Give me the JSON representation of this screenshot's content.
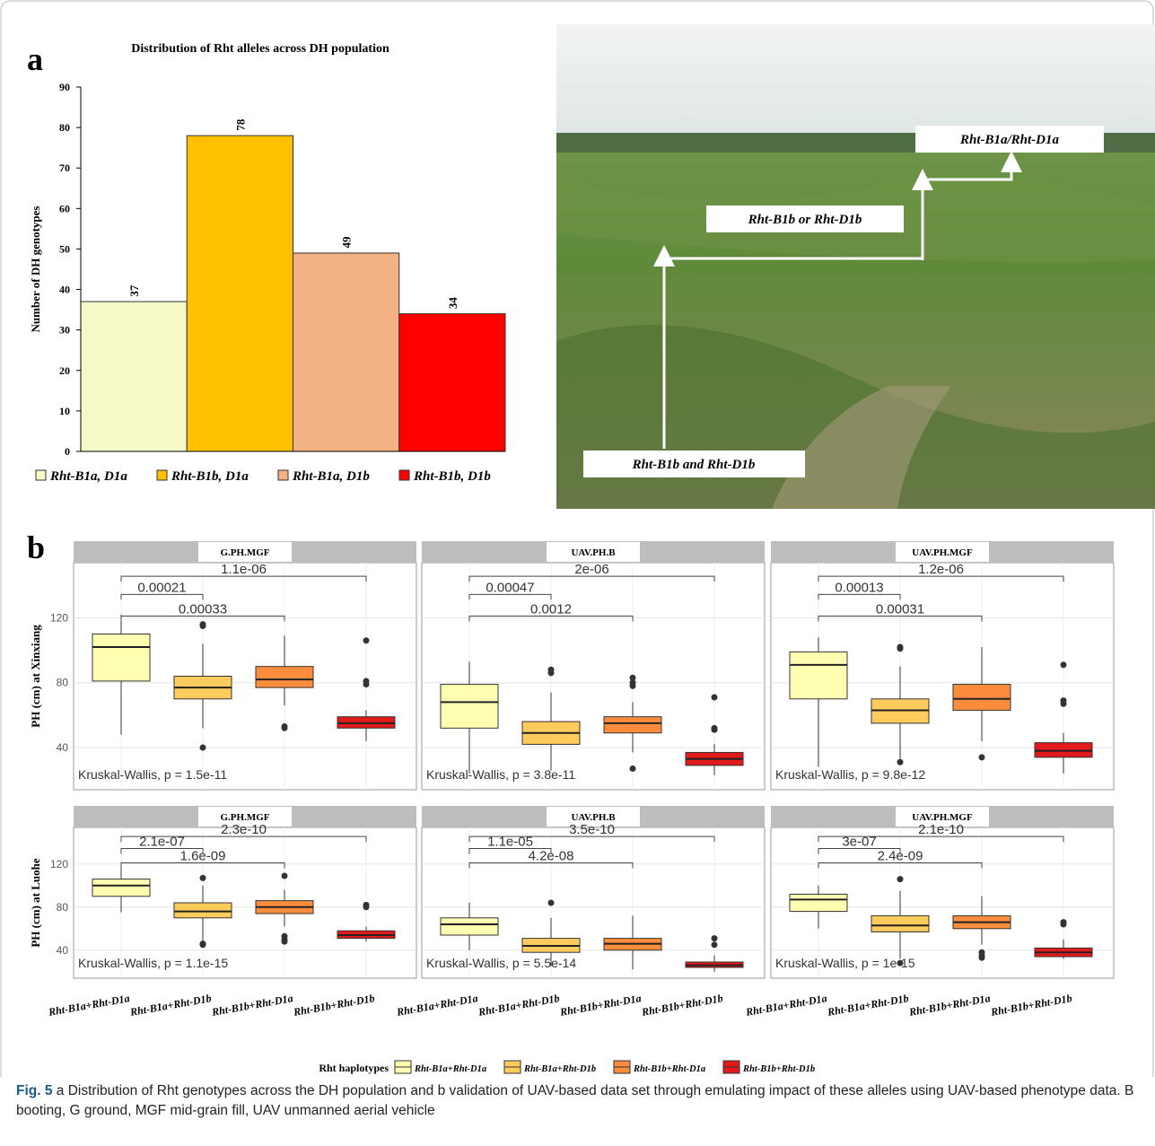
{
  "panel_labels": [
    "a",
    "b"
  ],
  "chart_data": [
    {
      "type": "bar",
      "title": "Distribution of Rht alleles across DH population",
      "ylabel": "Number of DH genotypes",
      "categories": [
        "Rht-B1a, D1a",
        "Rht-B1b, D1a",
        "Rht-B1a, D1b",
        "Rht-B1b, D1b"
      ],
      "values": [
        37,
        78,
        49,
        34
      ],
      "colors": [
        "#f6f8c8",
        "#ffc000",
        "#f4b183",
        "#ff0000"
      ],
      "ylim": [
        0,
        90
      ],
      "yticks": [
        0,
        10,
        20,
        30,
        40,
        50,
        60,
        70,
        80,
        90
      ]
    },
    {
      "type": "box",
      "title": "G.PH.MGF",
      "ylabel": "PH (cm) at Xinxiang",
      "ylim": [
        14,
        154
      ],
      "yticks": [
        40,
        80,
        120
      ],
      "grid": true,
      "comparisons": [
        "0.00021",
        "0.00033",
        "1.1e-06"
      ],
      "test": "Kruskal-Wallis, p = 1.5e-11",
      "boxes": [
        {
          "min": 48,
          "q1": 81,
          "median": 102,
          "q3": 110,
          "max": 122,
          "outliers": []
        },
        {
          "min": 52,
          "q1": 70,
          "median": 77,
          "q3": 84,
          "max": 104,
          "outliers": [
            115,
            116,
            40
          ]
        },
        {
          "min": 66,
          "q1": 77,
          "median": 82,
          "q3": 90,
          "max": 109,
          "outliers": [
            53,
            52
          ]
        },
        {
          "min": 44,
          "q1": 52,
          "median": 55,
          "q3": 59,
          "max": 63,
          "outliers": [
            106,
            81,
            79
          ]
        }
      ]
    },
    {
      "type": "box",
      "title": "UAV.PH.B",
      "ylim": [
        14,
        154
      ],
      "yticks": [
        40,
        80,
        120
      ],
      "grid": true,
      "comparisons": [
        "0.00047",
        "0.0012",
        "2e-06"
      ],
      "test": "Kruskal-Wallis, p = 3.8e-11",
      "boxes": [
        {
          "min": 24,
          "q1": 52,
          "median": 68,
          "q3": 79,
          "max": 93,
          "outliers": []
        },
        {
          "min": 26,
          "q1": 42,
          "median": 49,
          "q3": 56,
          "max": 74,
          "outliers": [
            88,
            86
          ]
        },
        {
          "min": 37,
          "q1": 49,
          "median": 55,
          "q3": 59,
          "max": 68,
          "outliers": [
            83,
            80,
            78,
            27
          ]
        },
        {
          "min": 23,
          "q1": 29,
          "median": 33,
          "q3": 37,
          "max": 42,
          "outliers": [
            71,
            52,
            51
          ]
        }
      ]
    },
    {
      "type": "box",
      "title": "UAV.PH.MGF",
      "ylim": [
        14,
        154
      ],
      "yticks": [
        40,
        80,
        120
      ],
      "grid": true,
      "comparisons": [
        "0.00013",
        "0.00031",
        "1.2e-06"
      ],
      "test": "Kruskal-Wallis, p = 9.8e-12",
      "boxes": [
        {
          "min": 28,
          "q1": 70,
          "median": 91,
          "q3": 99,
          "max": 108,
          "outliers": []
        },
        {
          "min": 33,
          "q1": 55,
          "median": 63,
          "q3": 70,
          "max": 90,
          "outliers": [
            102,
            101,
            31
          ]
        },
        {
          "min": 44,
          "q1": 63,
          "median": 70,
          "q3": 79,
          "max": 102,
          "outliers": [
            34
          ]
        },
        {
          "min": 24,
          "q1": 34,
          "median": 38,
          "q3": 43,
          "max": 49,
          "outliers": [
            91,
            69,
            67
          ]
        }
      ]
    },
    {
      "type": "box",
      "title": "G.PH.MGF",
      "ylabel": "PH (cm) at Luohe",
      "ylim": [
        14,
        154
      ],
      "yticks": [
        40,
        80,
        120
      ],
      "grid": true,
      "categories": [
        "Rht-B1a+Rht-D1a",
        "Rht-B1a+Rht-D1b",
        "Rht-B1b+Rht-D1a",
        "Rht-B1b+Rht-D1b"
      ],
      "comparisons": [
        "2.1e-07",
        "1.6e-09",
        "2.3e-10"
      ],
      "test": "Kruskal-Wallis, p = 1.1e-15",
      "boxes": [
        {
          "min": 75,
          "q1": 90,
          "median": 100,
          "q3": 106,
          "max": 116,
          "outliers": []
        },
        {
          "min": 47,
          "q1": 70,
          "median": 76,
          "q3": 84,
          "max": 100,
          "outliers": [
            107,
            45,
            46
          ]
        },
        {
          "min": 62,
          "q1": 74,
          "median": 80,
          "q3": 86,
          "max": 96,
          "outliers": [
            109,
            53,
            50,
            48
          ]
        },
        {
          "min": 48,
          "q1": 51,
          "median": 54,
          "q3": 58,
          "max": 62,
          "outliers": [
            82,
            80
          ]
        }
      ]
    },
    {
      "type": "box",
      "title": "UAV.PH.B",
      "ylim": [
        14,
        154
      ],
      "yticks": [
        40,
        80,
        120
      ],
      "grid": true,
      "categories": [
        "Rht-B1a+Rht-D1a",
        "Rht-B1a+Rht-D1b",
        "Rht-B1b+Rht-D1a",
        "Rht-B1b+Rht-D1b"
      ],
      "comparisons": [
        "1.1e-05",
        "4.2e-08",
        "3.5e-10"
      ],
      "test": "Kruskal-Wallis, p = 5.5e-14",
      "boxes": [
        {
          "min": 40,
          "q1": 54,
          "median": 64,
          "q3": 70,
          "max": 84,
          "outliers": []
        },
        {
          "min": 25,
          "q1": 38,
          "median": 44,
          "q3": 51,
          "max": 70,
          "outliers": [
            84
          ]
        },
        {
          "min": 22,
          "q1": 40,
          "median": 46,
          "q3": 51,
          "max": 72,
          "outliers": []
        },
        {
          "min": 20,
          "q1": 24,
          "median": 26,
          "q3": 29,
          "max": 35,
          "outliers": [
            51,
            45
          ]
        }
      ]
    },
    {
      "type": "box",
      "title": "UAV.PH.MGF",
      "ylim": [
        14,
        154
      ],
      "yticks": [
        40,
        80,
        120
      ],
      "grid": true,
      "categories": [
        "Rht-B1a+Rht-D1a",
        "Rht-B1a+Rht-D1b",
        "Rht-B1b+Rht-D1a",
        "Rht-B1b+Rht-D1b"
      ],
      "comparisons": [
        "3e-07",
        "2.4e-09",
        "2.1e-10"
      ],
      "test": "Kruskal-Wallis, p = 1e-15",
      "boxes": [
        {
          "min": 60,
          "q1": 76,
          "median": 87,
          "q3": 92,
          "max": 100,
          "outliers": []
        },
        {
          "min": 32,
          "q1": 57,
          "median": 63,
          "q3": 72,
          "max": 95,
          "outliers": [
            106,
            28
          ]
        },
        {
          "min": 45,
          "q1": 60,
          "median": 66,
          "q3": 72,
          "max": 90,
          "outliers": [
            38,
            35,
            33
          ]
        },
        {
          "min": 32,
          "q1": 34,
          "median": 38,
          "q3": 42,
          "max": 50,
          "outliers": [
            66,
            64
          ]
        }
      ]
    }
  ],
  "photo": {
    "labels": [
      "Rht-B1a/Rht-D1a",
      "Rht-B1b or Rht-D1b",
      "Rht-B1b and Rht-D1b"
    ]
  },
  "box_legend": {
    "title": "Rht haplotypes",
    "names": [
      "Rht-B1a+Rht-D1a",
      "Rht-B1a+Rht-D1b",
      "Rht-B1b+Rht-D1a",
      "Rht-B1b+Rht-D1b"
    ],
    "colors": [
      "#ffffb2",
      "#fecc5c",
      "#fd8d3c",
      "#e31a1c"
    ]
  },
  "caption": {
    "label": "Fig. 5",
    "text": "a Distribution of Rht genotypes across the DH population and b validation of UAV-based data set through emulating impact of these alleles using UAV-based phenotype data. B booting, G ground, MGF mid-grain fill, UAV unmanned aerial vehicle"
  }
}
